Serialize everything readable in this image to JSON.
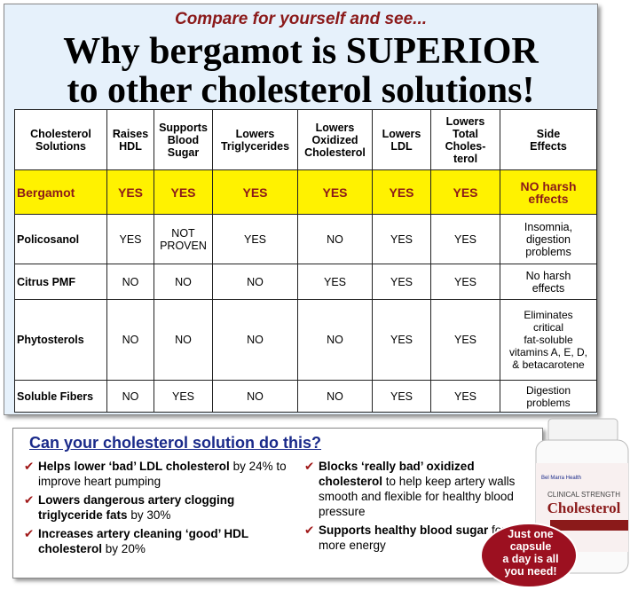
{
  "header": {
    "tagline": "Compare for yourself and see...",
    "title_lines": [
      "Why bergamot is SUPERIOR",
      "to other cholesterol solutions!"
    ]
  },
  "table": {
    "columns": [
      "Cholesterol\nSolutions",
      "Raises\nHDL",
      "Supports\nBlood\nSugar",
      "Lowers\nTriglycerides",
      "Lowers\nOxidized\nCholesterol",
      "Lowers\nLDL",
      "Lowers\nTotal\nCholes-\nterol",
      "Side\nEffects"
    ],
    "rows": [
      [
        "Bergamot",
        "YES",
        "YES",
        "YES",
        "YES",
        "YES",
        "YES",
        "NO harsh\neffects"
      ],
      [
        "Policosanol",
        "YES",
        "NOT\nPROVEN",
        "YES",
        "NO",
        "YES",
        "YES",
        "Insomnia,\ndigestion\nproblems"
      ],
      [
        "Citrus PMF",
        "NO",
        "NO",
        "NO",
        "YES",
        "YES",
        "YES",
        "No harsh\neffects"
      ],
      [
        "Phytosterols",
        "NO",
        "NO",
        "NO",
        "NO",
        "YES",
        "YES",
        "Eliminates\ncritical\nfat-soluble\nvitamins A, E, D,\n& betacarotene"
      ],
      [
        "Soluble Fibers",
        "NO",
        "YES",
        "NO",
        "NO",
        "YES",
        "YES",
        "Digestion\nproblems"
      ]
    ]
  },
  "panel": {
    "heading": "Can your cholesterol solution do this?",
    "bullets": [
      {
        "bold": "Helps lower ‘bad’ LDL cholesterol",
        "text": "by 24% to improve heart pumping"
      },
      {
        "bold": "Lowers dangerous artery clogging triglyceride fats",
        "text": "by 30%"
      },
      {
        "bold": "Increases artery cleaning ‘good’ HDL cholesterol",
        "text": "by 20%"
      },
      {
        "bold": "Blocks ‘really bad’ oxidized cholesterol",
        "text": "to help keep artery walls smooth and flexible for healthy blood pressure"
      },
      {
        "bold": "Supports healthy blood sugar",
        "text": "for more energy"
      }
    ]
  },
  "bottle": {
    "brand": "Bel Marra Health",
    "strength": "CLINICAL STRENGTH",
    "product": "Cholesterol"
  },
  "badge": "Just one\ncapsule\na day is all\nyou need!"
}
